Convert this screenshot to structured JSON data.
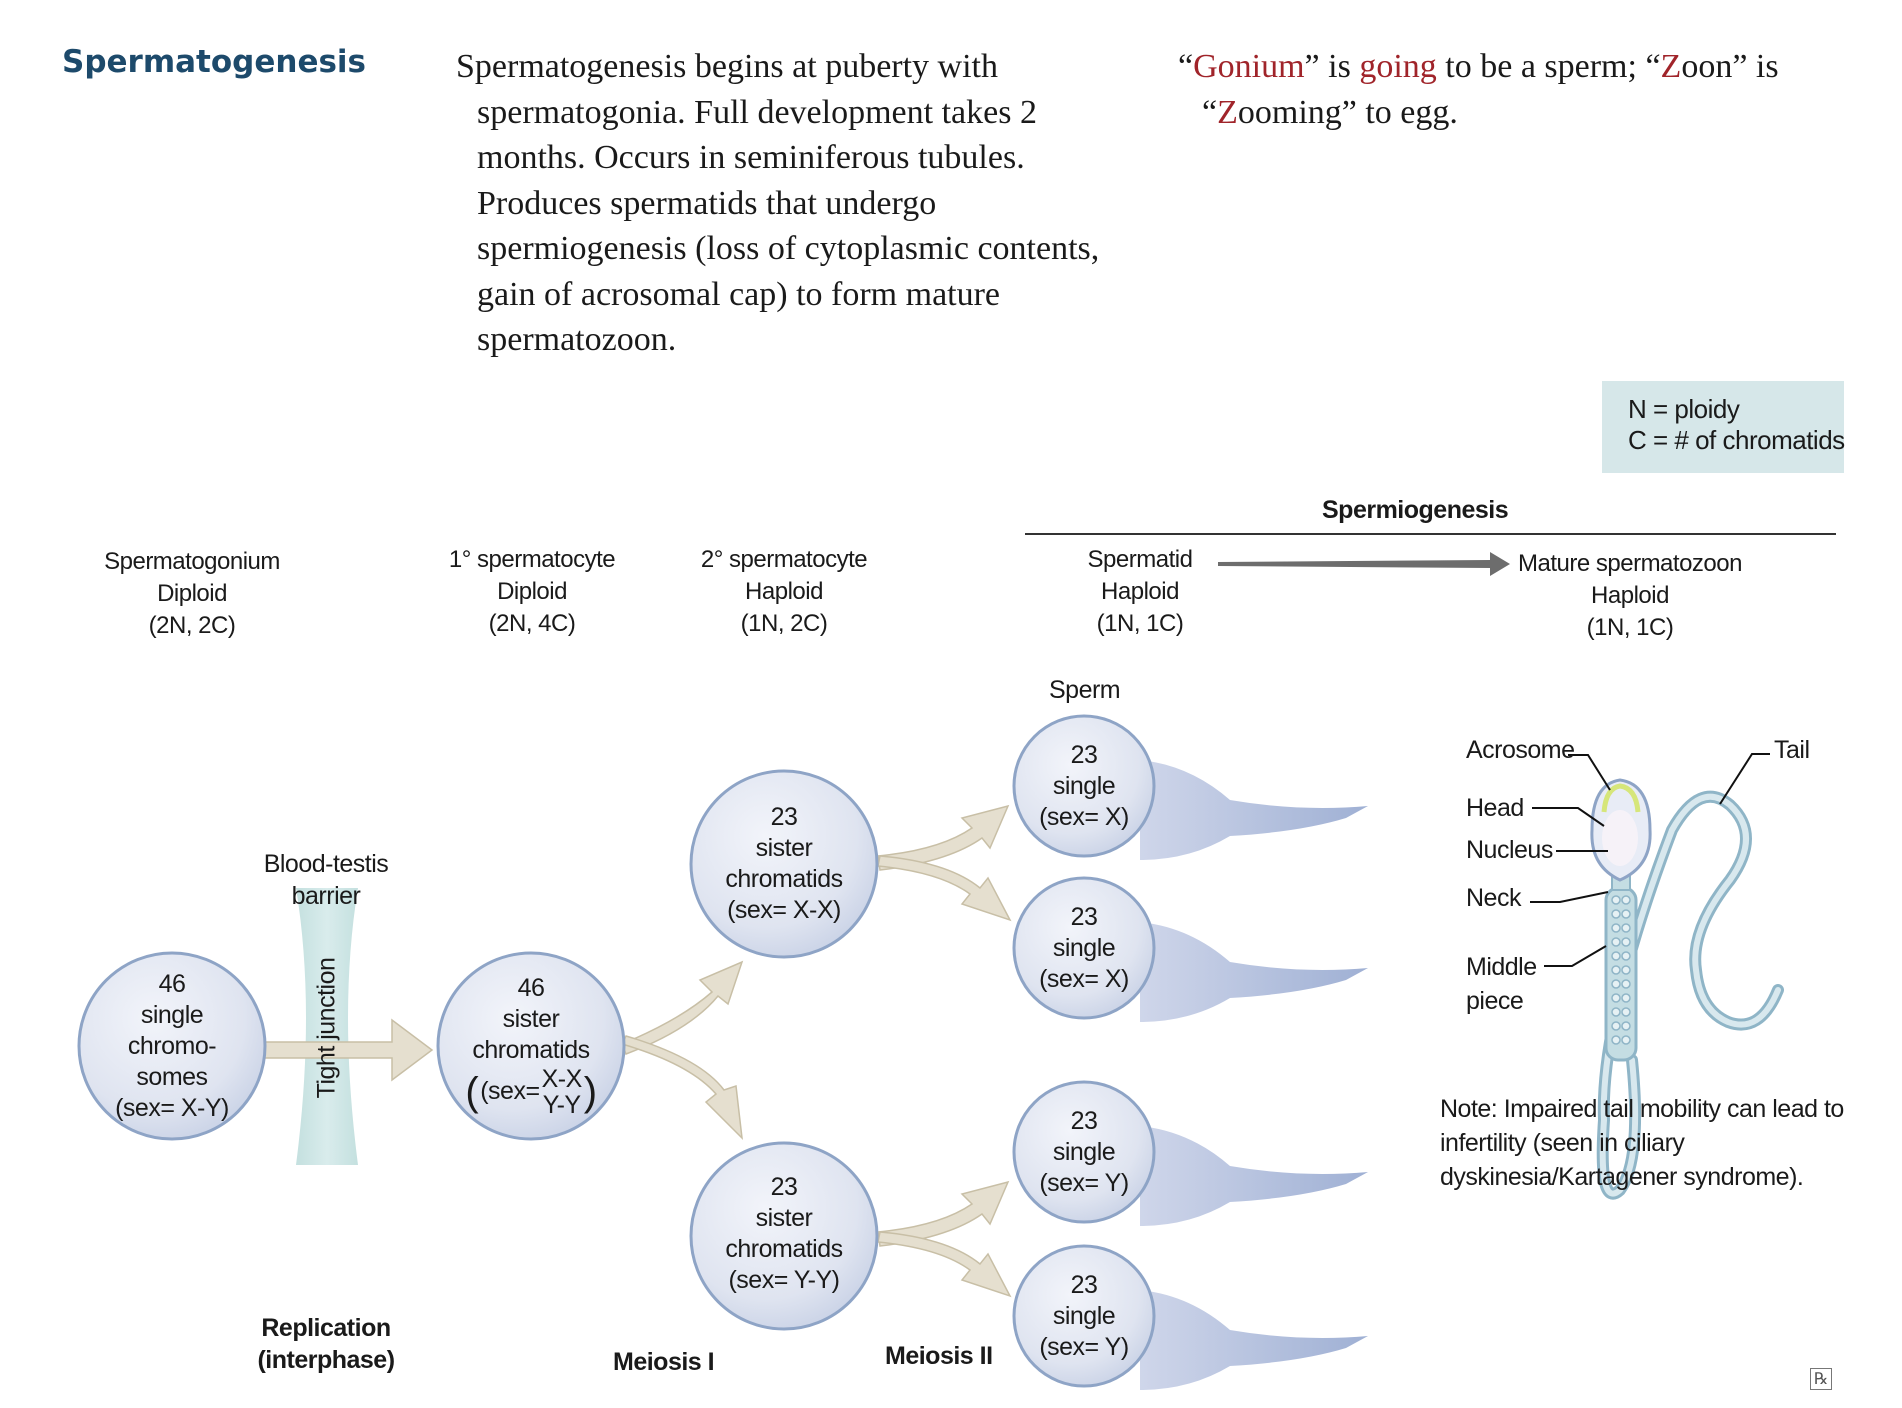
{
  "page_title": "Spermatogenesis",
  "description": [
    "Spermatogenesis begins at puberty with",
    "spermatogonia. Full development takes 2",
    "months. Occurs in seminiferous tubules.",
    "Produces spermatids that undergo",
    "spermiogenesis (loss of cytoplasmic contents,",
    "gain of acrosomal cap) to form mature",
    "spermatozoon."
  ],
  "mnemonic": {
    "q1": "“",
    "gonium": "Gonium",
    "t1": "” is ",
    "going": "going",
    "t2": " to be a sperm; “",
    "z1": "Z",
    "t3": "oon” is",
    "q2": "“",
    "z2": "Z",
    "t4": "ooming” to egg."
  },
  "legend": [
    "N = ploidy",
    "C = # of chromatids"
  ],
  "spermiogenesis_label": "Spermiogenesis",
  "stages": {
    "spermatogonium": [
      "Spermatogonium",
      "Diploid",
      "(2N, 2C)"
    ],
    "primary": [
      "1° spermatocyte",
      "Diploid",
      "(2N, 4C)"
    ],
    "secondary": [
      "2° spermatocyte",
      "Haploid",
      "(1N, 2C)"
    ],
    "spermatid": [
      "Spermatid",
      "Haploid",
      "(1N, 1C)"
    ],
    "mature": [
      "Mature spermatozoon",
      "Haploid",
      "(1N, 1C)"
    ]
  },
  "cells": {
    "spermatogonium": [
      "46",
      "single",
      "chromo-",
      "somes",
      "(sex= X-Y)"
    ],
    "primary": [
      "46",
      "sister",
      "chromatids",
      "(sex=",
      "X-X",
      "Y-Y"
    ],
    "secondary_top": [
      "23",
      "sister",
      "chromatids",
      "(sex= X-X)"
    ],
    "secondary_bottom": [
      "23",
      "sister",
      "chromatids",
      "(sex= Y-Y)"
    ],
    "sperm_1": [
      "23",
      "single",
      "(sex= X)"
    ],
    "sperm_2": [
      "23",
      "single",
      "(sex= X)"
    ],
    "sperm_3": [
      "23",
      "single",
      "(sex= Y)"
    ],
    "sperm_4": [
      "23",
      "single",
      "(sex= Y)"
    ]
  },
  "labels": {
    "sperm": "Sperm",
    "blood_testis": [
      "Blood-testis",
      "barrier"
    ],
    "tight_junction": "Tight junction",
    "replication": [
      "Replication",
      "(interphase)"
    ],
    "meiosis1": "Meiosis I",
    "meiosis2": "Meiosis II"
  },
  "anatomy": {
    "acrosome": "Acrosome",
    "head": "Head",
    "nucleus": "Nucleus",
    "neck": "Neck",
    "middle_piece": [
      "Middle",
      "piece"
    ],
    "tail": "Tail"
  },
  "note": [
    "Note: Impaired tail mobility can lead to",
    "infertility (seen in ciliary",
    "dyskinesia/Kartagener syndrome)."
  ],
  "rx_mark": "℞",
  "colors": {
    "title": "#1d4a6b",
    "mnemonic_highlight": "#a0242a",
    "legend_bg": "#d6e7e9",
    "cell_fill": "#dde3f0",
    "cell_stroke": "#8ea4c6",
    "arrow_fill": "#e5dfcf",
    "arrow_stroke": "#c2b9a0",
    "junction": "#cfe6e6"
  }
}
